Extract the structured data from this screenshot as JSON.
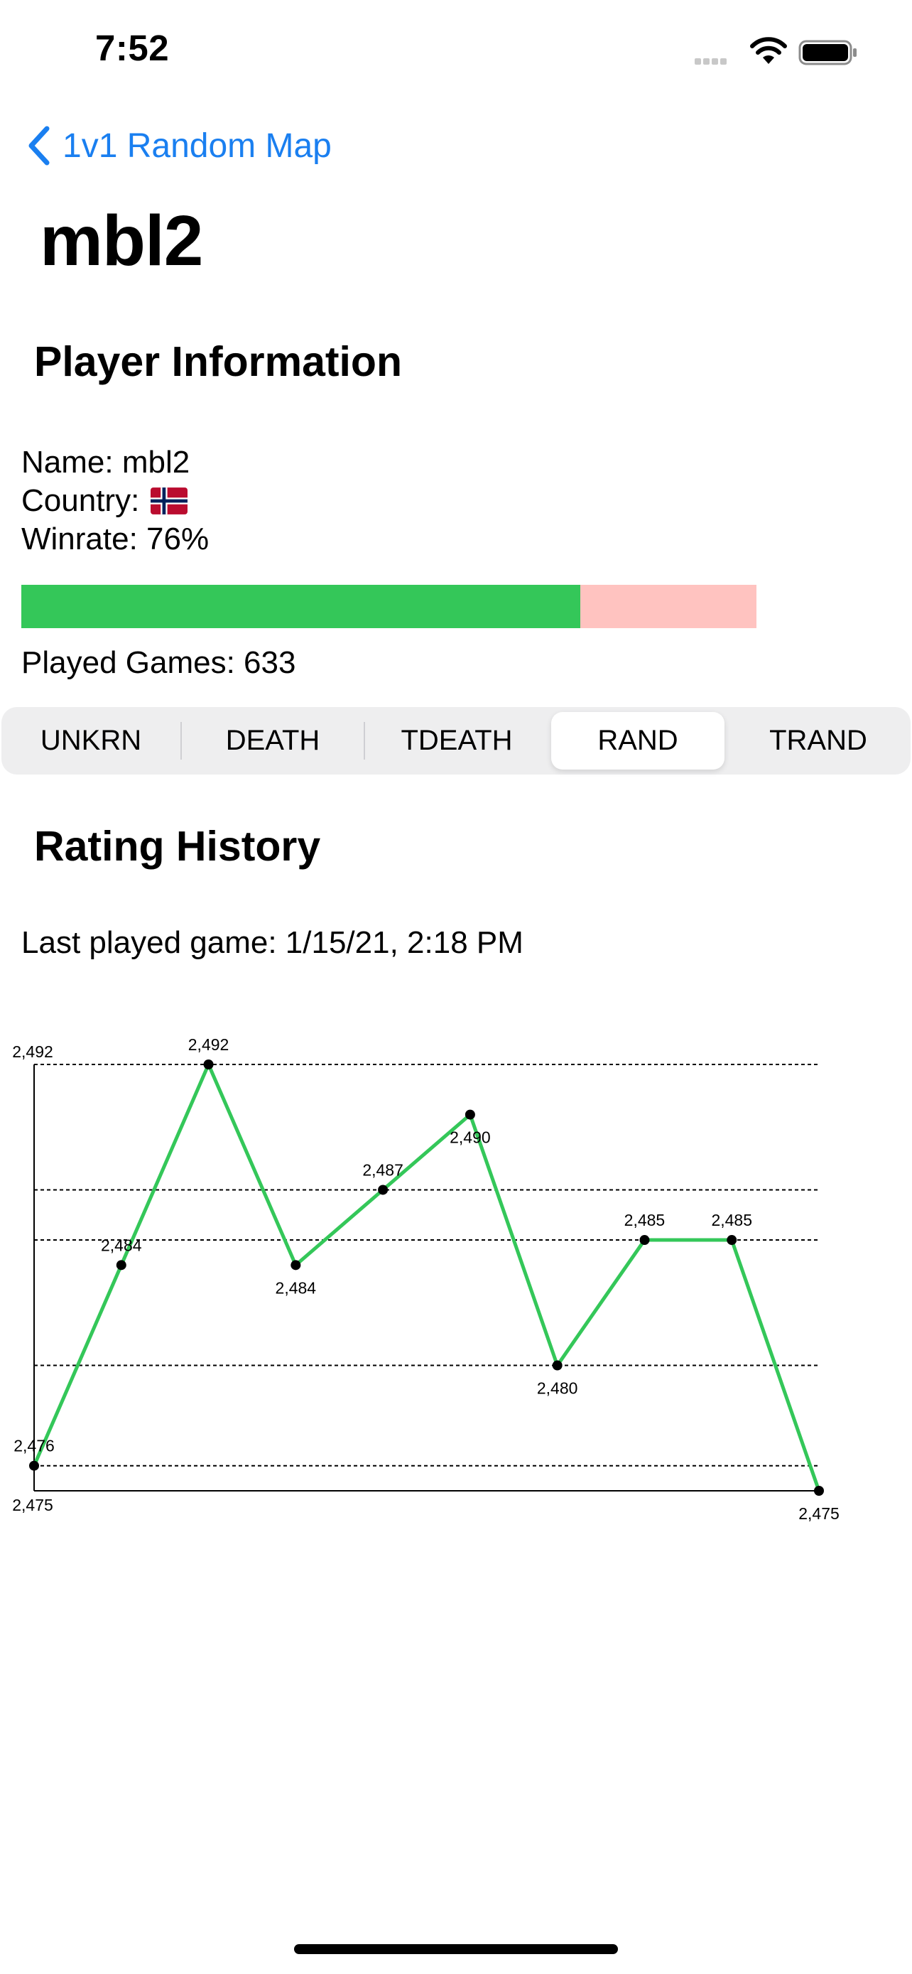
{
  "status_bar": {
    "time": "7:52"
  },
  "nav": {
    "back_label": "1v1 Random Map"
  },
  "player": {
    "title": "mbl2"
  },
  "info": {
    "section_title": "Player Information",
    "name_line": "Name: mbl2",
    "country_label": "Country:",
    "country_flag": "norway-flag-icon",
    "winrate_line": "Winrate: 76%",
    "winrate": 0.76,
    "played_games_line": "Played Games: 633"
  },
  "colors": {
    "accent": "#1a7ff0",
    "win": "#34c759",
    "loss": "#ffc3c0",
    "line": "#34c759"
  },
  "modes": {
    "items": [
      "UNKRN",
      "DEATH",
      "TDEATH",
      "RAND",
      "TRAND"
    ],
    "selected_index": 3
  },
  "rating": {
    "section_title": "Rating History",
    "last_played": "Last played game: 1/15/21, 2:18 PM"
  },
  "chart_data": {
    "type": "line",
    "x": [
      0,
      1,
      2,
      3,
      4,
      5,
      6,
      7,
      8,
      9
    ],
    "values": [
      2476,
      2484,
      2492,
      2484,
      2487,
      2490,
      2480,
      2485,
      2485,
      2475
    ],
    "point_labels": [
      "2,476",
      "2,484",
      "2,492",
      "2,484",
      "2,487",
      "2,490",
      "2,480",
      "2,485",
      "2,485",
      "2,475"
    ],
    "y_labels": {
      "max": "2,492",
      "min": "2,475"
    },
    "ylim": [
      2475,
      2492
    ],
    "reference_lines": [
      2492,
      2487,
      2485,
      2480,
      2476
    ],
    "title": "",
    "xlabel": "",
    "ylabel": "",
    "legend": "none"
  }
}
